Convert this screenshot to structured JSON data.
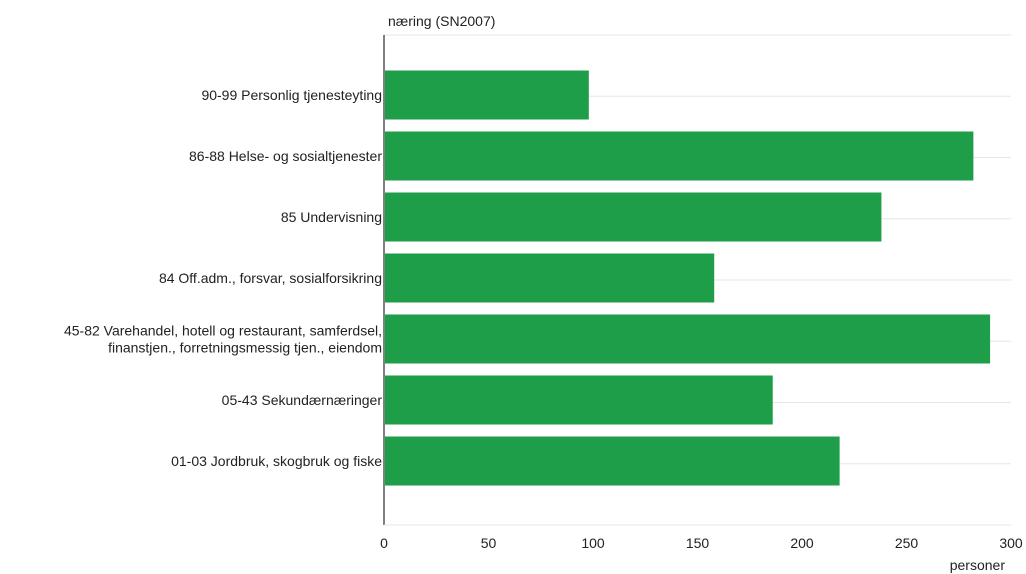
{
  "chart_data": {
    "type": "bar",
    "orientation": "horizontal",
    "ylabel": "næring (SN2007)",
    "xlabel": "personer",
    "xlim": [
      0,
      300
    ],
    "x_ticks": [
      0,
      50,
      100,
      150,
      200,
      250,
      300
    ],
    "grid": true,
    "categories": [
      [
        "90-99 Personlig tjenesteyting"
      ],
      [
        "86-88 Helse- og sosialtjenester"
      ],
      [
        "85 Undervisning"
      ],
      [
        "84 Off.adm., forsvar, sosialforsikring"
      ],
      [
        "45-82 Varehandel, hotell og restaurant, samferdsel,",
        "finanstjen., forretningsmessig tjen., eiendom"
      ],
      [
        "05-43 Sekundærnæringer"
      ],
      [
        "01-03 Jordbruk, skogbruk og fiske"
      ]
    ],
    "values": [
      98,
      282,
      238,
      158,
      290,
      186,
      218
    ],
    "bar_color": "#1f9e4a",
    "grid_color": "#e6e6e6",
    "axis_color": "#000000"
  }
}
